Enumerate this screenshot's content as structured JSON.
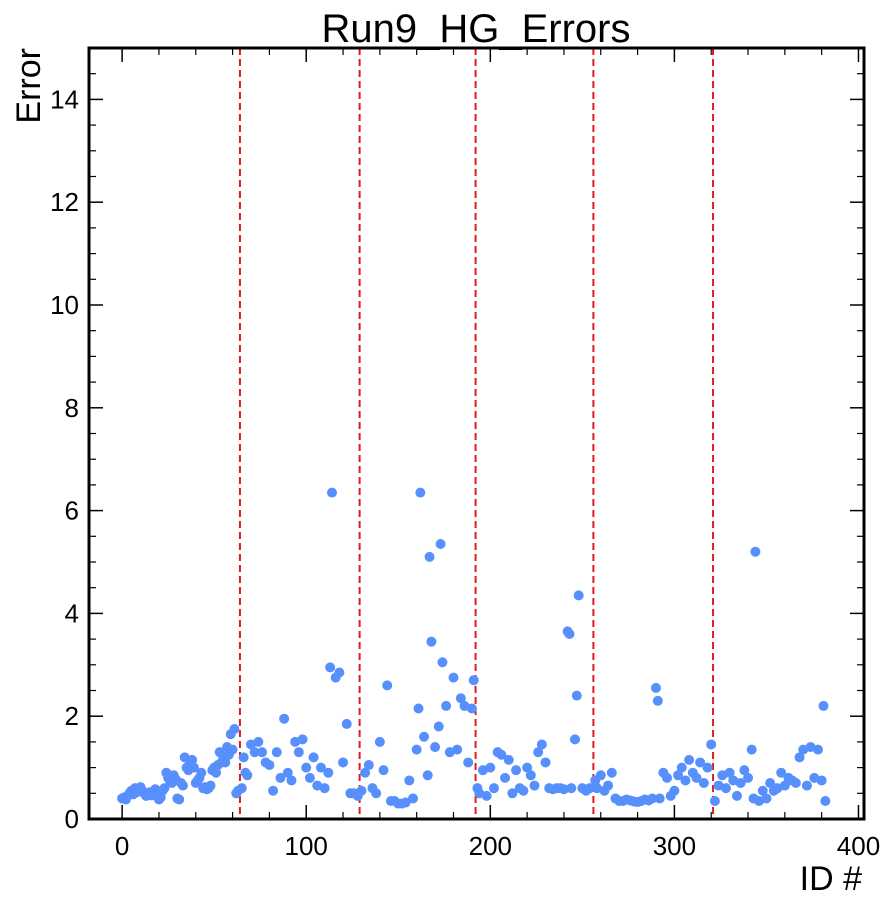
{
  "chart_data": {
    "type": "scatter",
    "title": "Run9_HG_Errors",
    "xlabel": "ID #",
    "ylabel": "Error",
    "xlim": [
      -18,
      403
    ],
    "ylim": [
      0,
      15
    ],
    "x_ticks": [
      0,
      100,
      200,
      300,
      400
    ],
    "y_ticks": [
      0,
      2,
      4,
      6,
      8,
      10,
      12,
      14
    ],
    "x_tick_labels": [
      "0",
      "100",
      "200",
      "300",
      "400"
    ],
    "y_tick_labels": [
      "0",
      "2",
      "4",
      "6",
      "8",
      "10",
      "12",
      "14"
    ],
    "grid": false,
    "point_color": "#5790fc",
    "vline_color": "#e41a1c",
    "vlines": [
      64,
      129,
      192,
      256,
      321
    ],
    "series": [
      {
        "x": [
          0,
          1,
          2,
          3,
          4,
          5,
          6,
          7,
          8,
          9,
          10,
          11,
          12,
          13,
          14,
          15,
          16,
          17,
          18,
          19,
          20,
          21,
          22,
          23,
          24,
          25,
          26,
          27,
          28,
          29,
          30,
          31,
          32,
          33,
          34,
          35,
          36,
          37,
          38,
          39,
          40,
          41,
          42,
          43,
          44,
          45,
          46,
          47,
          48,
          49,
          50,
          51,
          52,
          53,
          54,
          55,
          56,
          57,
          58,
          59,
          60,
          61,
          62,
          63,
          65,
          66,
          67,
          68,
          70,
          72,
          74,
          76,
          78,
          80,
          82,
          84,
          86,
          88,
          90,
          92,
          94,
          96,
          98,
          100,
          102,
          104,
          106,
          108,
          110,
          112,
          113,
          114,
          116,
          118,
          120,
          122,
          124,
          126,
          128,
          130,
          132,
          134,
          136,
          138,
          140,
          142,
          144,
          146,
          148,
          150,
          152,
          154,
          156,
          158,
          160,
          161,
          162,
          164,
          166,
          167,
          168,
          170,
          172,
          173,
          174,
          176,
          178,
          180,
          182,
          184,
          186,
          188,
          190,
          191,
          193,
          194,
          196,
          198,
          200,
          202,
          204,
          206,
          208,
          210,
          212,
          214,
          216,
          218,
          220,
          222,
          224,
          226,
          228,
          230,
          232,
          234,
          236,
          238,
          240,
          242,
          243,
          244,
          246,
          247,
          248,
          250,
          252,
          254,
          257,
          258,
          260,
          262,
          264,
          266,
          268,
          270,
          272,
          274,
          276,
          278,
          280,
          282,
          284,
          286,
          288,
          290,
          291,
          292,
          294,
          296,
          298,
          300,
          302,
          304,
          306,
          308,
          310,
          312,
          314,
          316,
          318,
          320,
          322,
          324,
          326,
          328,
          330,
          332,
          334,
          336,
          338,
          340,
          342,
          343,
          344,
          346,
          348,
          350,
          352,
          354,
          356,
          358,
          360,
          362,
          364,
          366,
          368,
          370,
          372,
          374,
          376,
          378,
          380,
          381,
          382
        ],
        "y": [
          0.4,
          0.42,
          0.38,
          0.45,
          0.5,
          0.55,
          0.48,
          0.6,
          0.52,
          0.58,
          0.62,
          0.55,
          0.5,
          0.45,
          0.48,
          0.52,
          0.46,
          0.5,
          0.58,
          0.44,
          0.38,
          0.42,
          0.55,
          0.6,
          0.9,
          0.8,
          0.75,
          0.7,
          0.85,
          0.78,
          0.4,
          0.38,
          0.7,
          0.65,
          1.2,
          1.0,
          0.95,
          1.1,
          1.15,
          1.0,
          0.7,
          0.75,
          0.8,
          0.9,
          0.6,
          0.62,
          0.58,
          0.6,
          0.65,
          0.95,
          1.0,
          0.9,
          1.05,
          1.3,
          1.1,
          1.2,
          1.1,
          1.4,
          1.25,
          1.65,
          1.35,
          1.75,
          0.5,
          0.55,
          0.6,
          1.2,
          0.9,
          0.85,
          1.45,
          1.3,
          1.5,
          1.3,
          1.1,
          1.05,
          0.55,
          1.3,
          0.8,
          1.95,
          0.9,
          0.75,
          1.5,
          1.3,
          1.55,
          1.0,
          0.8,
          1.2,
          0.65,
          1.0,
          0.6,
          0.9,
          2.95,
          6.35,
          2.75,
          2.85,
          1.1,
          1.85,
          0.5,
          0.5,
          0.45,
          0.55,
          0.9,
          1.05,
          0.6,
          0.5,
          1.5,
          0.95,
          2.6,
          0.35,
          0.35,
          0.3,
          0.3,
          0.32,
          0.75,
          0.4,
          1.35,
          2.15,
          6.35,
          1.6,
          0.85,
          5.1,
          3.45,
          1.4,
          1.8,
          5.35,
          3.05,
          2.2,
          1.3,
          2.75,
          1.35,
          2.35,
          2.2,
          1.1,
          2.15,
          2.7,
          0.6,
          0.5,
          0.95,
          0.45,
          1.0,
          0.6,
          1.3,
          1.25,
          0.8,
          1.15,
          0.5,
          0.95,
          0.6,
          0.55,
          1.0,
          0.85,
          0.65,
          1.3,
          1.45,
          1.1,
          0.6,
          0.58,
          0.6,
          0.6,
          0.58,
          3.65,
          3.6,
          0.6,
          1.55,
          2.4,
          4.35,
          0.6,
          0.55,
          0.6,
          0.75,
          0.6,
          0.85,
          0.55,
          0.65,
          0.9,
          0.4,
          0.35,
          0.35,
          0.38,
          0.36,
          0.34,
          0.33,
          0.35,
          0.38,
          0.36,
          0.4,
          2.55,
          2.3,
          0.4,
          0.9,
          0.8,
          0.45,
          0.55,
          0.85,
          1.0,
          0.75,
          1.15,
          0.9,
          0.8,
          1.1,
          0.7,
          1.0,
          1.45,
          0.35,
          0.65,
          0.85,
          0.6,
          0.9,
          0.75,
          0.45,
          0.7,
          0.95,
          0.8,
          1.35,
          0.4,
          5.2,
          0.35,
          0.55,
          0.4,
          0.7,
          0.55,
          0.6,
          0.9,
          0.65,
          0.8,
          0.75,
          0.7,
          1.2,
          1.35,
          0.65,
          1.4,
          0.8,
          1.35,
          0.75,
          2.2,
          0.35
        ]
      }
    ]
  }
}
